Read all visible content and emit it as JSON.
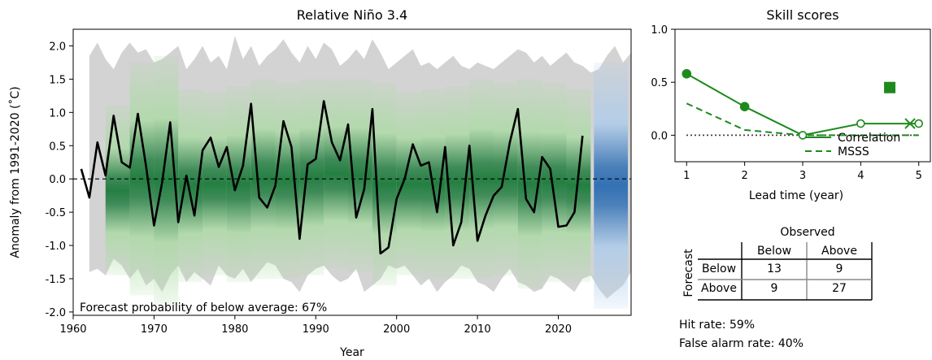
{
  "chart_data": [
    {
      "type": "line",
      "title": "Relative Niño 3.4",
      "xlabel": "Year",
      "ylabel": "Anomaly from 1991-2020 (˚C)",
      "xlim": [
        1960,
        2029
      ],
      "ylim": [
        -2.05,
        2.25
      ],
      "xticks": [
        "1960",
        "1970",
        "1980",
        "1990",
        "2000",
        "2010",
        "2020"
      ],
      "yticks": [
        "2.0",
        "1.5",
        "1.0",
        "0.5",
        "0.0",
        "-0.5",
        "-1.0",
        "-1.5",
        "-2.0"
      ],
      "annotation": "Forecast probability of below average: 67%",
      "grid": false,
      "colors": {
        "line": "#000000",
        "envelope": "#d3d3d3",
        "hindcast": "#1b7a3a",
        "forecast": "#2a6cb3"
      },
      "observed": {
        "x": [
          1961,
          1962,
          1963,
          1964,
          1965,
          1966,
          1967,
          1968,
          1969,
          1970,
          1971,
          1972,
          1973,
          1974,
          1975,
          1976,
          1977,
          1978,
          1979,
          1980,
          1981,
          1982,
          1983,
          1984,
          1985,
          1986,
          1987,
          1988,
          1989,
          1990,
          1991,
          1992,
          1993,
          1994,
          1995,
          1996,
          1997,
          1998,
          1999,
          2000,
          2001,
          2002,
          2003,
          2004,
          2005,
          2006,
          2007,
          2008,
          2009,
          2010,
          2011,
          2012,
          2013,
          2014,
          2015,
          2016,
          2017,
          2018,
          2019,
          2020,
          2021,
          2022,
          2023
        ],
        "y": [
          0.15,
          -0.28,
          0.55,
          0.05,
          0.95,
          0.25,
          0.17,
          0.98,
          0.2,
          -0.7,
          -0.05,
          0.85,
          -0.65,
          0.05,
          -0.55,
          0.43,
          0.62,
          0.18,
          0.48,
          -0.17,
          0.2,
          1.13,
          -0.28,
          -0.43,
          -0.1,
          0.87,
          0.48,
          -0.9,
          0.22,
          0.3,
          1.17,
          0.55,
          0.28,
          0.82,
          -0.58,
          -0.15,
          1.05,
          -1.12,
          -1.03,
          -0.3,
          0.0,
          0.52,
          0.2,
          0.25,
          -0.5,
          0.48,
          -1.0,
          -0.65,
          0.5,
          -0.93,
          -0.55,
          -0.25,
          -0.12,
          0.55,
          1.05,
          -0.3,
          -0.5,
          0.33,
          0.15,
          -0.72,
          -0.7,
          -0.5,
          0.65
        ]
      },
      "envelope": {
        "x": [
          1962,
          1963,
          1964,
          1965,
          1966,
          1967,
          1968,
          1969,
          1970,
          1971,
          1972,
          1973,
          1974,
          1975,
          1976,
          1977,
          1978,
          1979,
          1980,
          1981,
          1982,
          1983,
          1984,
          1985,
          1986,
          1987,
          1988,
          1989,
          1990,
          1991,
          1992,
          1993,
          1994,
          1995,
          1996,
          1997,
          1998,
          1999,
          2000,
          2001,
          2002,
          2003,
          2004,
          2005,
          2006,
          2007,
          2008,
          2009,
          2010,
          2011,
          2012,
          2013,
          2014,
          2015,
          2016,
          2017,
          2018,
          2019,
          2020,
          2021,
          2022,
          2023,
          2024,
          2025,
          2026,
          2027,
          2028,
          2029
        ],
        "upper": [
          1.85,
          2.05,
          1.8,
          1.65,
          1.9,
          2.05,
          1.9,
          1.95,
          1.75,
          1.8,
          1.9,
          2.0,
          1.65,
          1.8,
          2.0,
          1.75,
          1.85,
          1.65,
          2.15,
          1.8,
          2.0,
          1.7,
          1.85,
          1.95,
          2.1,
          1.9,
          1.75,
          2.0,
          1.8,
          2.05,
          1.95,
          1.7,
          1.8,
          1.95,
          1.8,
          2.1,
          1.9,
          1.65,
          1.75,
          1.85,
          1.95,
          1.7,
          1.75,
          1.65,
          1.75,
          1.85,
          1.7,
          1.65,
          1.75,
          1.7,
          1.65,
          1.75,
          1.85,
          1.95,
          1.9,
          1.75,
          1.85,
          1.7,
          1.8,
          1.9,
          1.75,
          1.7,
          1.6,
          1.65,
          1.85,
          2.0,
          1.75,
          1.9
        ],
        "lower": [
          -1.4,
          -1.35,
          -1.45,
          -1.2,
          -1.3,
          -1.5,
          -1.35,
          -1.6,
          -1.5,
          -1.7,
          -1.45,
          -1.3,
          -1.55,
          -1.4,
          -1.5,
          -1.6,
          -1.3,
          -1.45,
          -1.5,
          -1.35,
          -1.55,
          -1.4,
          -1.25,
          -1.3,
          -1.5,
          -1.55,
          -1.7,
          -1.45,
          -1.35,
          -1.3,
          -1.45,
          -1.55,
          -1.5,
          -1.35,
          -1.7,
          -1.6,
          -1.5,
          -1.3,
          -1.35,
          -1.3,
          -1.45,
          -1.6,
          -1.5,
          -1.7,
          -1.55,
          -1.45,
          -1.3,
          -1.35,
          -1.55,
          -1.6,
          -1.7,
          -1.5,
          -1.35,
          -1.55,
          -1.6,
          -1.7,
          -1.65,
          -1.45,
          -1.5,
          -1.6,
          -1.7,
          -1.5,
          -1.45,
          -1.65,
          -1.8,
          -1.7,
          -1.6,
          -1.4
        ]
      },
      "hindcast_bands": [
        {
          "x0": 1964,
          "x1": 1967,
          "lo": -1.45,
          "hi": 1.1
        },
        {
          "x0": 1967,
          "x1": 1970,
          "lo": -1.75,
          "hi": 1.75
        },
        {
          "x0": 1970,
          "x1": 1973,
          "lo": -1.9,
          "hi": 1.85
        },
        {
          "x0": 1973,
          "x1": 1976,
          "lo": -1.55,
          "hi": 1.35
        },
        {
          "x0": 1976,
          "x1": 1979,
          "lo": -1.45,
          "hi": 1.3
        },
        {
          "x0": 1979,
          "x1": 1982,
          "lo": -1.55,
          "hi": 1.4
        },
        {
          "x0": 1982,
          "x1": 1985,
          "lo": -1.5,
          "hi": 1.5
        },
        {
          "x0": 1985,
          "x1": 1988,
          "lo": -1.5,
          "hi": 1.45
        },
        {
          "x0": 1988,
          "x1": 1991,
          "lo": -1.45,
          "hi": 1.5
        },
        {
          "x0": 1991,
          "x1": 1994,
          "lo": -1.35,
          "hi": 1.5
        },
        {
          "x0": 1994,
          "x1": 1997,
          "lo": -1.4,
          "hi": 1.5
        },
        {
          "x0": 1997,
          "x1": 2000,
          "lo": -1.6,
          "hi": 1.45
        },
        {
          "x0": 2000,
          "x1": 2003,
          "lo": -1.45,
          "hi": 1.3
        },
        {
          "x0": 2003,
          "x1": 2006,
          "lo": -1.5,
          "hi": 1.35
        },
        {
          "x0": 2006,
          "x1": 2009,
          "lo": -1.5,
          "hi": 1.4
        },
        {
          "x0": 2009,
          "x1": 2012,
          "lo": -1.5,
          "hi": 1.5
        },
        {
          "x0": 2012,
          "x1": 2015,
          "lo": -1.45,
          "hi": 1.45
        },
        {
          "x0": 2015,
          "x1": 2018,
          "lo": -1.65,
          "hi": 1.5
        },
        {
          "x0": 2018,
          "x1": 2021,
          "lo": -1.55,
          "hi": 1.45
        },
        {
          "x0": 2021,
          "x1": 2024,
          "lo": -1.55,
          "hi": 1.35
        }
      ],
      "forecast_band": {
        "x0": 2024,
        "x1": 2029,
        "lo": -1.95,
        "hi": 1.75
      }
    },
    {
      "type": "line",
      "title": "Skill scores",
      "xlabel": "Lead time (year)",
      "ylabel": "",
      "xlim": [
        0.8,
        5.2
      ],
      "ylim": [
        -0.25,
        1.0
      ],
      "xticks": [
        "1",
        "2",
        "3",
        "4",
        "5"
      ],
      "yticks": [
        "1.0",
        "0.5",
        "0.0"
      ],
      "legend": {
        "placement": "bottom-right",
        "entries": [
          "Correlation",
          "MSSS"
        ]
      },
      "colors": {
        "series": "#1e8a1e",
        "zero_line": "#000000"
      },
      "series": [
        {
          "name": "Correlation",
          "x": [
            1,
            2,
            3,
            4,
            5
          ],
          "y": [
            0.58,
            0.27,
            0.0,
            0.11,
            0.11
          ],
          "markers": [
            "filled-circle",
            "filled-circle",
            "open-circle",
            "open-circle",
            "open-circle"
          ]
        },
        {
          "name": "MSSS",
          "x": [
            1,
            2,
            3,
            4,
            5
          ],
          "y": [
            0.3,
            0.05,
            0.0,
            0.0,
            0.0
          ],
          "style": "dashed"
        }
      ],
      "extra_points": [
        {
          "x": 4.5,
          "y": 0.45,
          "marker": "square"
        },
        {
          "x": 4.85,
          "y": 0.11,
          "marker": "x"
        }
      ]
    }
  ],
  "contingency": {
    "header": "Observed",
    "side_label": "Forecast",
    "col_labels": [
      "Below",
      "Above"
    ],
    "rows": [
      {
        "label": "Below",
        "values": [
          "13",
          "9"
        ]
      },
      {
        "label": "Above",
        "values": [
          "9",
          "27"
        ]
      }
    ]
  },
  "stats": {
    "hit_rate": "Hit rate: 59%",
    "false_alarm_rate": "False alarm rate: 40%"
  }
}
